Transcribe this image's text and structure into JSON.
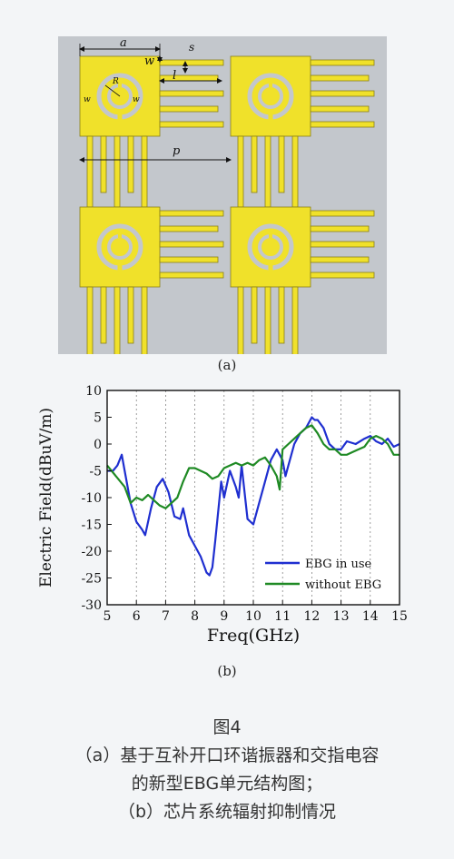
{
  "figure_a": {
    "sublabel": "(a)",
    "dims": {
      "a": "a",
      "w": "w",
      "s": "s",
      "l": "l",
      "p": "p",
      "r": "R",
      "wr": "w",
      "wc": "w"
    },
    "colors": {
      "metal": "#f0e12a",
      "edge": "#8a8018",
      "substrate": "#c3c7cc",
      "arrow": "#111111"
    }
  },
  "figure_b": {
    "sublabel": "(b)",
    "chart_data": {
      "type": "line",
      "xlabel": "Freq(GHz)",
      "ylabel": "Electric Field(dBuV/m)",
      "xlim": [
        5,
        15
      ],
      "ylim": [
        -30,
        10
      ],
      "xticks": [
        5,
        6,
        7,
        8,
        9,
        10,
        11,
        12,
        13,
        14,
        15
      ],
      "yticks": [
        10,
        5,
        0,
        -5,
        -10,
        -15,
        -20,
        -25,
        -30
      ],
      "grid": "vertical dotted",
      "legend_position": "bottom-right",
      "series": [
        {
          "name": "EBG in use",
          "color": "#1f2fd0",
          "x": [
            5.0,
            5.2,
            5.35,
            5.5,
            5.6,
            5.8,
            6.0,
            6.2,
            6.3,
            6.5,
            6.7,
            6.9,
            7.1,
            7.3,
            7.5,
            7.6,
            7.8,
            8.0,
            8.2,
            8.4,
            8.5,
            8.6,
            8.7,
            8.9,
            9.0,
            9.2,
            9.4,
            9.5,
            9.6,
            9.8,
            10.0,
            10.2,
            10.4,
            10.6,
            10.8,
            11.0,
            11.1,
            11.2,
            11.4,
            11.6,
            11.8,
            12.0,
            12.1,
            12.2,
            12.4,
            12.6,
            12.8,
            13.0,
            13.2,
            13.5,
            13.8,
            14.0,
            14.2,
            14.4,
            14.6,
            14.8,
            15.0
          ],
          "y": [
            -5.0,
            -5.0,
            -4.0,
            -2.0,
            -5.0,
            -11.0,
            -14.5,
            -16.0,
            -17.0,
            -12.0,
            -8.0,
            -6.5,
            -9.0,
            -13.5,
            -14.0,
            -12.0,
            -17.0,
            -19.0,
            -21.0,
            -24.0,
            -24.5,
            -23.0,
            -18.0,
            -7.0,
            -10.0,
            -5.0,
            -8.0,
            -10.0,
            -4.0,
            -14.0,
            -15.0,
            -11.0,
            -7.0,
            -3.0,
            -1.0,
            -3.0,
            -6.0,
            -4.0,
            0.0,
            2.0,
            3.0,
            5.0,
            4.5,
            4.5,
            3.0,
            0.0,
            -1.0,
            -1.0,
            0.5,
            0.0,
            1.0,
            1.5,
            0.5,
            0.0,
            1.0,
            -0.5,
            0.0
          ]
        },
        {
          "name": "without EBG",
          "color": "#1f8a24",
          "x": [
            5.0,
            5.3,
            5.6,
            5.8,
            6.0,
            6.2,
            6.4,
            6.6,
            6.8,
            7.0,
            7.2,
            7.4,
            7.6,
            7.8,
            8.0,
            8.2,
            8.4,
            8.6,
            8.8,
            9.0,
            9.2,
            9.4,
            9.6,
            9.8,
            10.0,
            10.2,
            10.4,
            10.6,
            10.8,
            10.9,
            11.0,
            11.2,
            11.4,
            11.6,
            11.8,
            12.0,
            12.2,
            12.4,
            12.6,
            12.8,
            13.0,
            13.2,
            13.4,
            13.6,
            13.8,
            14.0,
            14.2,
            14.4,
            14.6,
            14.8,
            15.0
          ],
          "y": [
            -4.0,
            -6.0,
            -8.0,
            -11.0,
            -10.0,
            -10.5,
            -9.5,
            -10.5,
            -11.5,
            -12.0,
            -11.0,
            -10.0,
            -7.0,
            -4.5,
            -4.5,
            -5.0,
            -5.5,
            -6.5,
            -6.0,
            -4.5,
            -4.0,
            -3.5,
            -4.0,
            -3.5,
            -4.0,
            -3.0,
            -2.5,
            -4.0,
            -6.0,
            -8.5,
            -1.0,
            0.0,
            1.0,
            2.0,
            3.0,
            3.5,
            2.0,
            0.0,
            -1.0,
            -1.0,
            -2.0,
            -2.0,
            -1.5,
            -1.0,
            -0.5,
            1.0,
            1.5,
            1.0,
            0.0,
            -2.0,
            -2.0
          ]
        }
      ]
    }
  },
  "caption": {
    "line1": "图4",
    "line2": "（a）基于互补开口环谐振器和交指电容",
    "line3": "的新型EBG单元结构图；",
    "line4": "（b）芯片系统辐射抑制情况"
  }
}
